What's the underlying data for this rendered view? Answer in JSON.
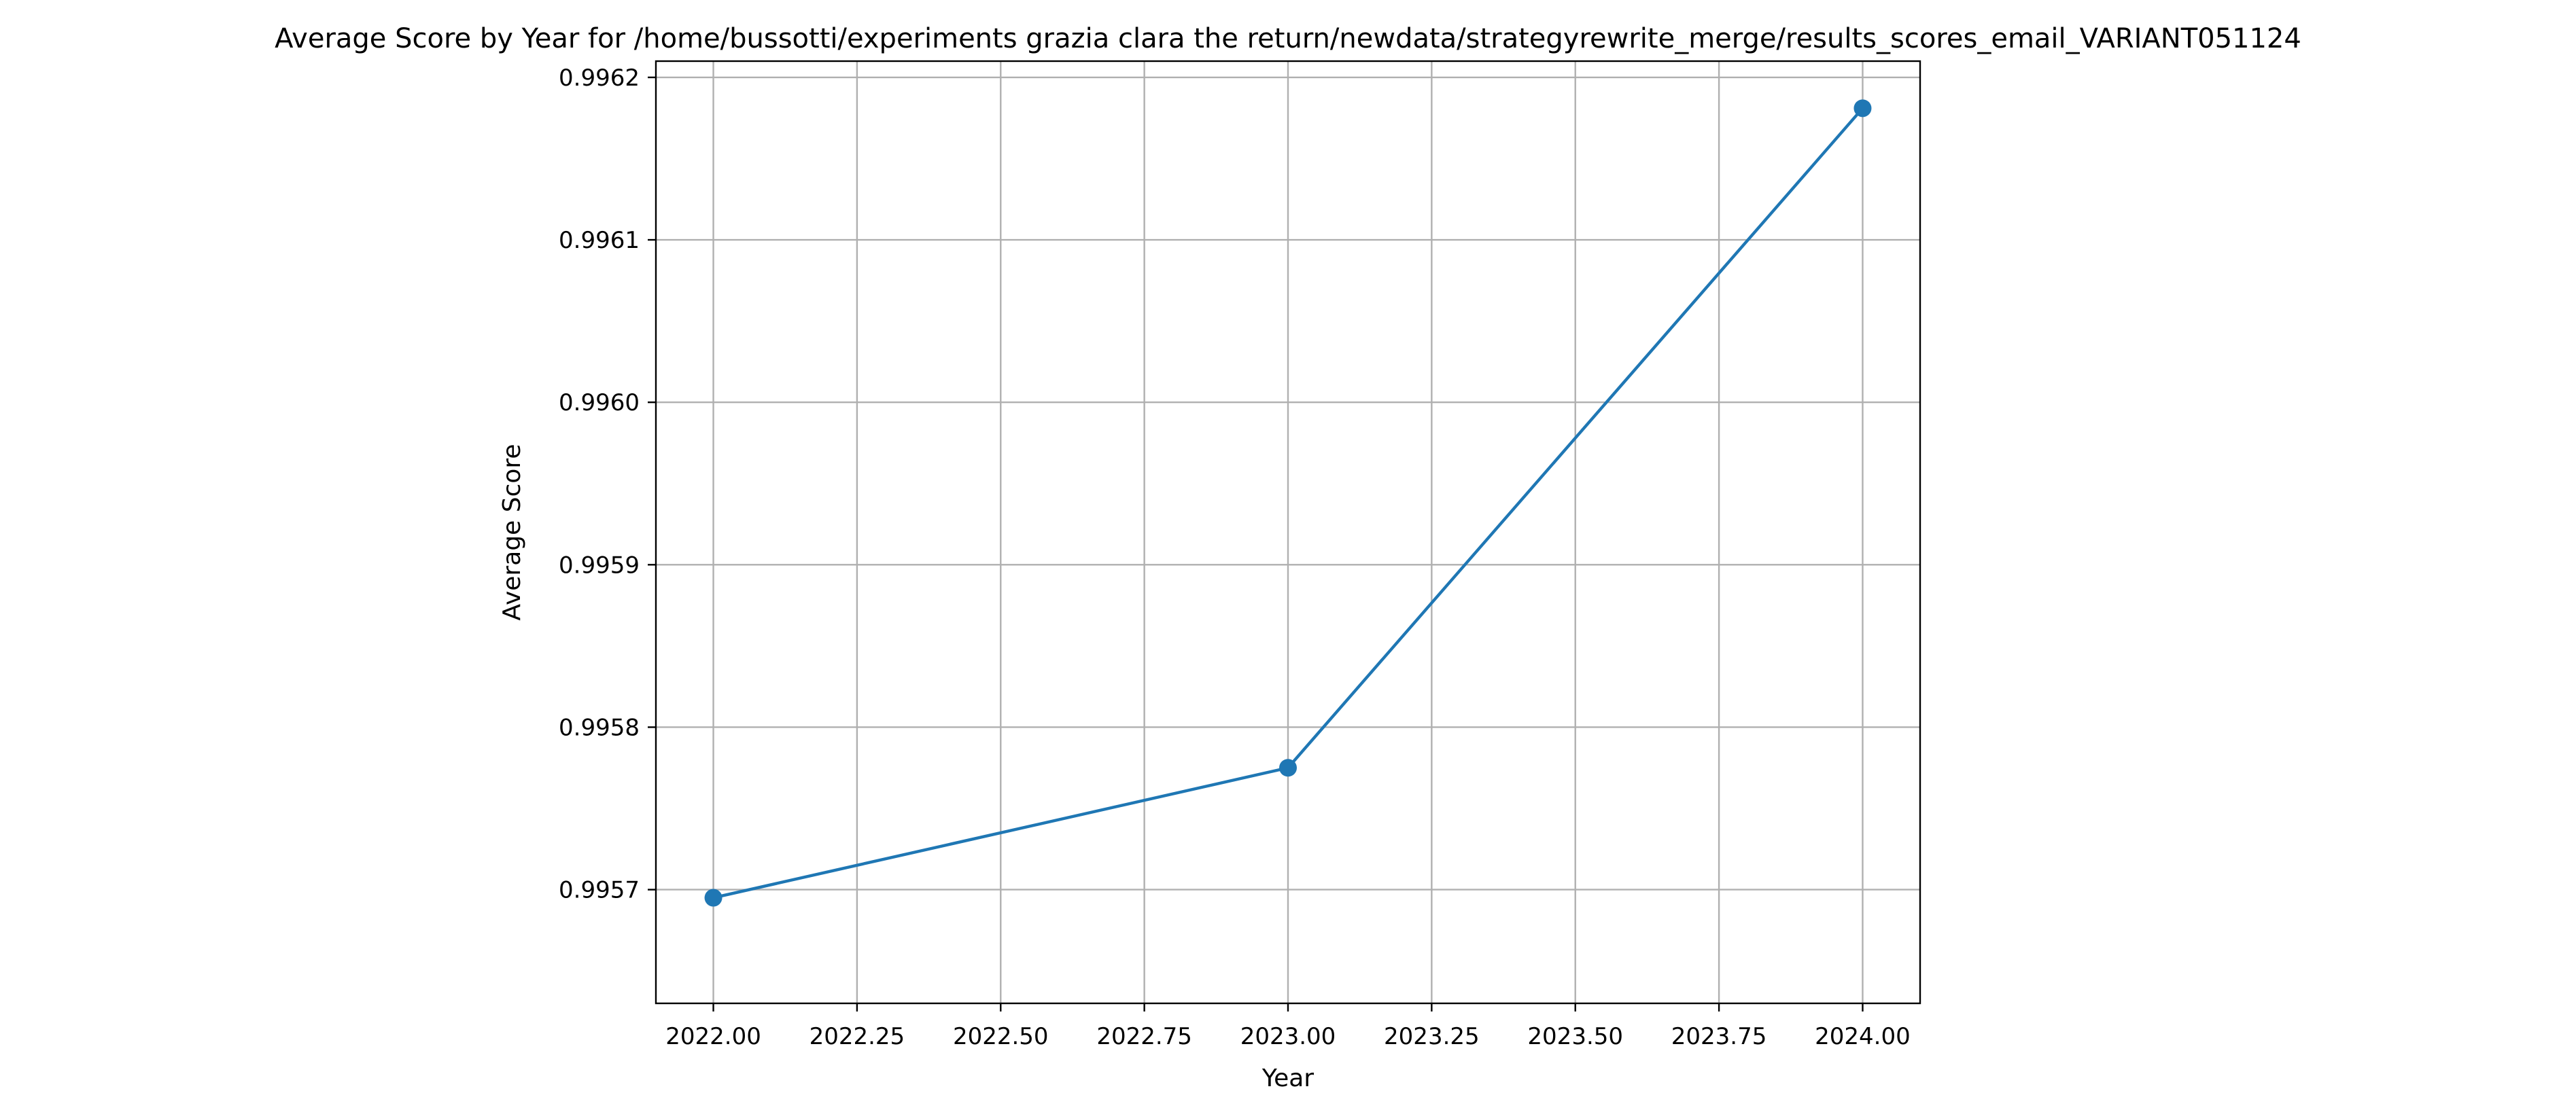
{
  "chart_data": {
    "type": "line",
    "title": "Average Score by Year for /home/bussotti/experiments grazia clara the return/newdata/strategyrewrite_merge/results_scores_email_VARIANT051124",
    "xlabel": "Year",
    "ylabel": "Average Score",
    "xlim": [
      1999.9,
      2024.1
    ],
    "ylim": [
      0.99563,
      0.99621
    ],
    "xticks": [
      2022.0,
      2022.25,
      2022.5,
      2022.75,
      2023.0,
      2023.25,
      2023.5,
      2023.75,
      2024.0
    ],
    "xtick_labels": [
      "2022.00",
      "2022.25",
      "2022.50",
      "2022.75",
      "2023.00",
      "2023.25",
      "2023.50",
      "2023.75",
      "2024.00"
    ],
    "yticks": [
      0.9957,
      0.9958,
      0.9959,
      0.996,
      0.9961,
      0.9962
    ],
    "ytick_labels": [
      "0.9957",
      "0.9958",
      "0.9959",
      "0.9960",
      "0.9961",
      "0.9962"
    ],
    "grid": true,
    "marker": "circle",
    "series": [
      {
        "color": "#1f77b4",
        "x": [
          2022,
          2023,
          2024
        ],
        "y": [
          0.995695,
          0.995775,
          0.996181
        ]
      }
    ]
  }
}
